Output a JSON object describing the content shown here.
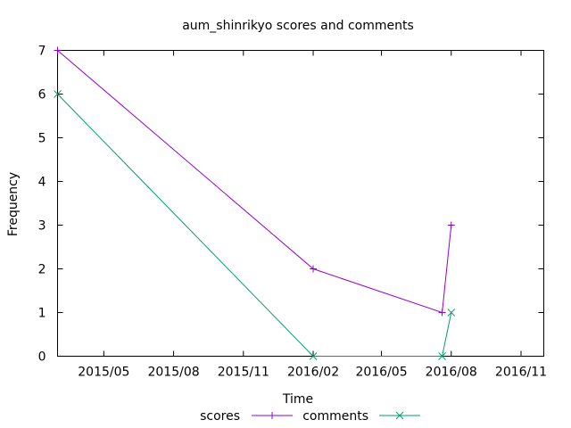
{
  "chart_data": {
    "type": "line",
    "title": "aum_shinrikyo scores and comments",
    "xlabel": "Time",
    "ylabel": "Frequency",
    "xlim": [
      "2015-03-01",
      "2016-12-01"
    ],
    "ylim": [
      0,
      7
    ],
    "x_ticks": [
      "2015/05",
      "2015/08",
      "2015/11",
      "2016/02",
      "2016/05",
      "2016/08",
      "2016/11"
    ],
    "x_tick_dates": [
      "2015-05-01",
      "2015-08-01",
      "2015-11-01",
      "2016-02-01",
      "2016-05-01",
      "2016-08-01",
      "2016-11-01"
    ],
    "y_ticks": [
      0,
      1,
      2,
      3,
      4,
      5,
      6,
      7
    ],
    "grid": false,
    "legend_position": "bottom",
    "series": [
      {
        "name": "scores",
        "color": "#9400d3",
        "marker": "+",
        "points": [
          {
            "x": "2015-03-01",
            "y": 7
          },
          {
            "x": "2016-02-01",
            "y": 2
          },
          {
            "x": "2016-07-20",
            "y": 1
          },
          {
            "x": "2016-08-01",
            "y": 3
          }
        ]
      },
      {
        "name": "comments",
        "color": "#009e73",
        "marker": "x",
        "points": [
          {
            "x": "2015-03-01",
            "y": 6
          },
          {
            "x": "2016-02-01",
            "y": 0
          },
          {
            "x": "2016-07-20",
            "y": 0
          },
          {
            "x": "2016-08-01",
            "y": 1
          }
        ]
      }
    ]
  }
}
